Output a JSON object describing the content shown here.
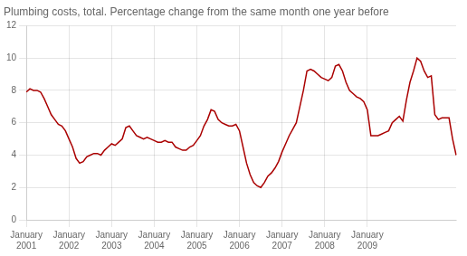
{
  "chart_data": {
    "type": "line",
    "title": "Plumbing costs, total. Percentage change from the same month one year before",
    "color": "#aa0000",
    "categories": [
      "January\n2001",
      null,
      null,
      null,
      null,
      null,
      null,
      null,
      null,
      null,
      null,
      null,
      "January\n2002",
      null,
      null,
      null,
      null,
      null,
      null,
      null,
      null,
      null,
      null,
      null,
      "January\n2003",
      null,
      null,
      null,
      null,
      null,
      null,
      null,
      null,
      null,
      null,
      null,
      "January\n2004",
      null,
      null,
      null,
      null,
      null,
      null,
      null,
      null,
      null,
      null,
      null,
      "January\n2005",
      null,
      null,
      null,
      null,
      null,
      null,
      null,
      null,
      null,
      null,
      null,
      "January\n2006",
      null,
      null,
      null,
      null,
      null,
      null,
      null,
      null,
      null,
      null,
      null,
      "January\n2007",
      null,
      null,
      null,
      null,
      null,
      null,
      null,
      null,
      null,
      null,
      null,
      "January\n2008",
      null,
      null,
      null,
      null,
      null,
      null,
      null,
      null,
      null,
      null,
      null,
      "January\n2009",
      null,
      null,
      null,
      null,
      null,
      null,
      null,
      null,
      null,
      null,
      null,
      null,
      null,
      null,
      null,
      null,
      null,
      null,
      null,
      null,
      null,
      null,
      null,
      null,
      null
    ],
    "values": [
      7.9,
      8.1,
      8.0,
      8.0,
      7.9,
      7.5,
      7.0,
      6.5,
      6.2,
      5.9,
      5.8,
      5.5,
      5.0,
      4.5,
      3.8,
      3.5,
      3.6,
      3.9,
      4.0,
      4.1,
      4.1,
      4.0,
      4.3,
      4.5,
      4.7,
      4.6,
      4.8,
      5.0,
      5.7,
      5.8,
      5.5,
      5.2,
      5.1,
      5.0,
      5.1,
      5.0,
      4.9,
      4.8,
      4.8,
      4.9,
      4.8,
      4.8,
      4.5,
      4.4,
      4.3,
      4.3,
      4.5,
      4.6,
      4.9,
      5.2,
      5.8,
      6.2,
      6.8,
      6.7,
      6.2,
      6.0,
      5.9,
      5.8,
      5.8,
      5.9,
      5.5,
      4.5,
      3.5,
      2.8,
      2.3,
      2.1,
      2.0,
      2.3,
      2.7,
      2.9,
      3.2,
      3.6,
      4.2,
      4.7,
      5.2,
      5.6,
      6.0,
      7.0,
      8.0,
      9.2,
      9.3,
      9.2,
      9.0,
      8.8,
      8.7,
      8.6,
      8.8,
      9.5,
      9.6,
      9.2,
      8.5,
      8.0,
      7.8,
      7.6,
      7.5,
      7.3,
      6.8,
      5.2,
      5.2,
      5.2,
      5.3,
      5.4,
      5.5,
      6.0,
      6.2,
      6.4,
      6.1,
      7.4,
      8.5,
      9.2,
      10.0,
      9.8,
      9.2,
      8.8,
      8.9,
      6.5,
      6.2,
      6.3,
      6.3,
      6.3,
      5.0,
      4.0
    ],
    "ylim": [
      0,
      12
    ],
    "yticks": [
      0,
      2,
      4,
      6,
      8,
      10,
      12
    ],
    "grid": true
  }
}
